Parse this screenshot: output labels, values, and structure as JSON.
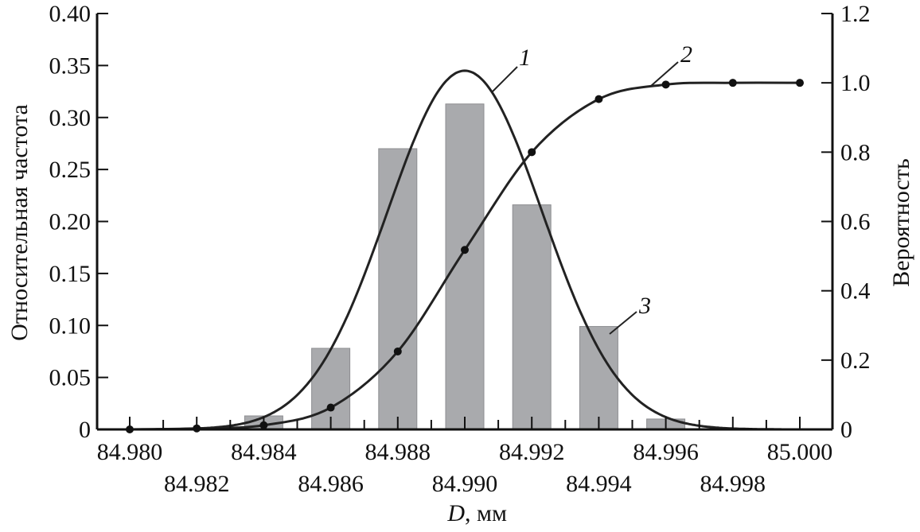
{
  "chart_data": {
    "type": "bar",
    "xlabel_italic": "D",
    "xlabel_rest": ", мм",
    "ylabel": "Относительная частота",
    "y2label": "Вероятность",
    "xlim": [
      84.979,
      85.001
    ],
    "ylim": [
      0,
      0.4
    ],
    "y2lim": [
      0,
      1.2
    ],
    "xticks_top": [
      "84.980",
      "84.984",
      "84.988",
      "84.992",
      "84.996",
      "85.000"
    ],
    "xticks_bottom": [
      "84.982",
      "84.986",
      "84.990",
      "84.994",
      "84.998"
    ],
    "yticks": [
      "0",
      "0.05",
      "0.10",
      "0.15",
      "0.20",
      "0.25",
      "0.30",
      "0.35",
      "0.40"
    ],
    "y2ticks": [
      "0",
      "0.2",
      "0.4",
      "0.6",
      "0.8",
      "1.0",
      "1.2"
    ],
    "bars": {
      "label": "3",
      "x": [
        84.984,
        84.986,
        84.988,
        84.99,
        84.992,
        84.994,
        84.996,
        84.998
      ],
      "values": [
        0.013,
        0.078,
        0.27,
        0.313,
        0.216,
        0.099,
        0.01,
        0.001
      ],
      "color": "#a9aaad"
    },
    "normal_curve": {
      "label": "1",
      "mean": 84.99,
      "peak": 0.345,
      "sigma": 0.00231
    },
    "cumulative": {
      "label": "2",
      "x": [
        84.98,
        84.982,
        84.984,
        84.986,
        84.988,
        84.99,
        84.992,
        84.994,
        84.996,
        84.998,
        85.0
      ],
      "values": [
        0.0,
        0.003,
        0.012,
        0.063,
        0.225,
        0.518,
        0.8,
        0.953,
        0.995,
        1.0,
        1.0
      ]
    },
    "grid": false
  }
}
